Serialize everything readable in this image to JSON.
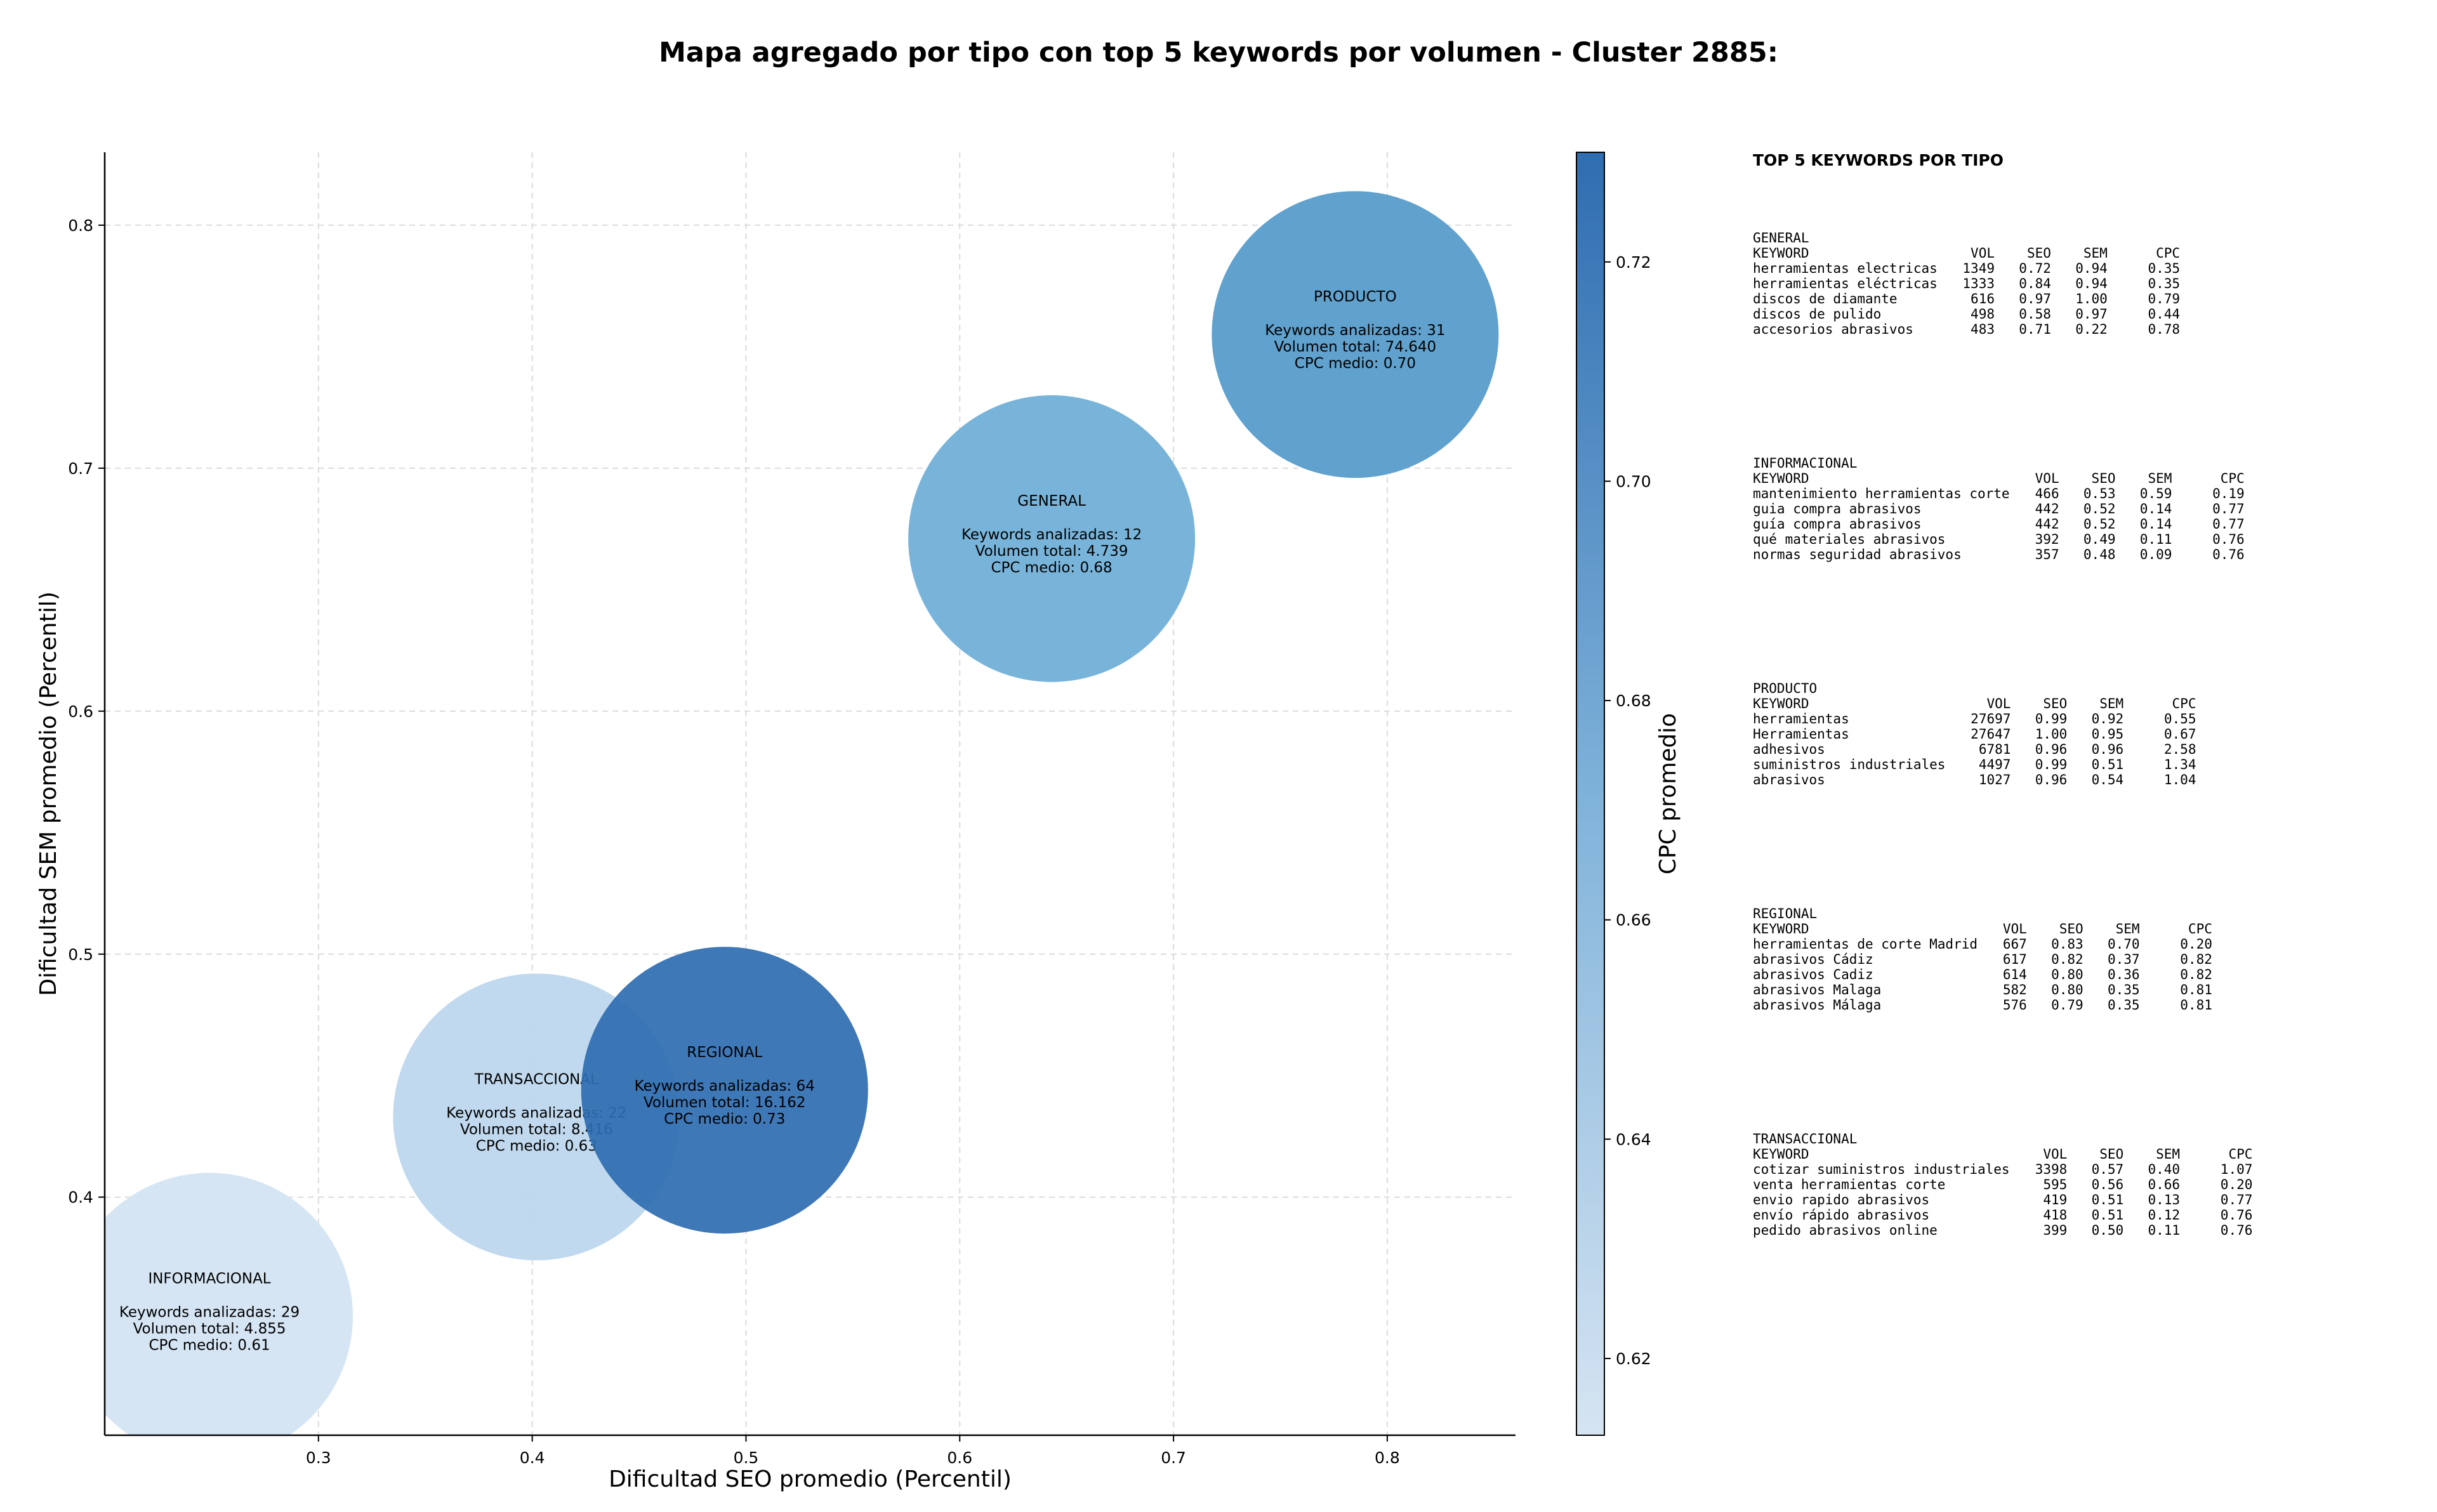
{
  "title": "Mapa agregado por tipo con top 5 keywords por volumen - Cluster 2885:",
  "chart_data": {
    "type": "scatter",
    "subtype": "bubble",
    "title": "Mapa agregado por tipo con top 5 keywords por volumen - Cluster 2885:",
    "xlabel": "Dificultad SEO promedio (Percentil)",
    "ylabel": "Dificultad SEM promedio (Percentil)",
    "xlim": [
      0.2,
      0.86
    ],
    "ylim": [
      0.302,
      0.83
    ],
    "xticks": [
      0.3,
      0.4,
      0.5,
      0.6,
      0.7,
      0.8
    ],
    "xtick_labels": [
      "0.3",
      "0.4",
      "0.5",
      "0.6",
      "0.7",
      "0.8"
    ],
    "yticks": [
      0.4,
      0.5,
      0.6,
      0.7,
      0.8
    ],
    "ytick_labels": [
      "0.4",
      "0.5",
      "0.6",
      "0.7",
      "0.8"
    ],
    "grid": true,
    "colorbar": {
      "label": "CPC promedio",
      "range": [
        0.613,
        0.73
      ],
      "ticks": [
        0.62,
        0.64,
        0.66,
        0.68,
        0.7,
        0.72
      ],
      "tick_labels": [
        "0.62",
        "0.64",
        "0.66",
        "0.68",
        "0.70",
        "0.72"
      ],
      "colormap": "Blues",
      "color_low": "#d6e4f2",
      "color_high": "#2f6db1"
    },
    "points": [
      {
        "name": "INFORMACIONAL",
        "x": 0.249,
        "y": 0.351,
        "color": "#d3e3f3",
        "lines": [
          "Keywords analizadas: 29",
          "Volumen total: 4.855",
          "CPC medio: 0.61"
        ]
      },
      {
        "name": "TRANSACCIONAL",
        "x": 0.402,
        "y": 0.433,
        "color": "#bcd6ed",
        "lines": [
          "Keywords analizadas: 22",
          "Volumen total: 8.416",
          "CPC medio: 0.63"
        ]
      },
      {
        "name": "REGIONAL",
        "x": 0.49,
        "y": 0.444,
        "color": "#2f6db1",
        "lines": [
          "Keywords analizadas: 64",
          "Volumen total: 16.162",
          "CPC medio: 0.73"
        ]
      },
      {
        "name": "GENERAL",
        "x": 0.643,
        "y": 0.671,
        "color": "#6daed6",
        "lines": [
          "Keywords analizadas: 12",
          "Volumen total: 4.739",
          "CPC medio: 0.68"
        ]
      },
      {
        "name": "PRODUCTO",
        "x": 0.785,
        "y": 0.755,
        "color": "#5399c9",
        "lines": [
          "Keywords analizadas: 31",
          "Volumen total: 74.640",
          "CPC medio: 0.70"
        ]
      }
    ]
  },
  "keywords_panel": {
    "title": "TOP 5 KEYWORDS POR TIPO",
    "headers": {
      "keyword": "KEYWORD",
      "vol": "VOL",
      "seo": "SEO",
      "sem": "SEM",
      "cpc": "CPC"
    },
    "groups": [
      {
        "name": "GENERAL",
        "rows": [
          {
            "keyword": "herramientas electricas",
            "vol": "1349",
            "seo": "0.72",
            "sem": "0.94",
            "cpc": "0.35"
          },
          {
            "keyword": "herramientas eléctricas",
            "vol": "1333",
            "seo": "0.84",
            "sem": "0.94",
            "cpc": "0.35"
          },
          {
            "keyword": "discos de diamante",
            "vol": "616",
            "seo": "0.97",
            "sem": "1.00",
            "cpc": "0.79"
          },
          {
            "keyword": "discos de pulido",
            "vol": "498",
            "seo": "0.58",
            "sem": "0.97",
            "cpc": "0.44"
          },
          {
            "keyword": "accesorios abrasivos",
            "vol": "483",
            "seo": "0.71",
            "sem": "0.22",
            "cpc": "0.78"
          }
        ]
      },
      {
        "name": "INFORMACIONAL",
        "rows": [
          {
            "keyword": "mantenimiento herramientas corte",
            "vol": "466",
            "seo": "0.53",
            "sem": "0.59",
            "cpc": "0.19"
          },
          {
            "keyword": "guia compra abrasivos",
            "vol": "442",
            "seo": "0.52",
            "sem": "0.14",
            "cpc": "0.77"
          },
          {
            "keyword": "guía compra abrasivos",
            "vol": "442",
            "seo": "0.52",
            "sem": "0.14",
            "cpc": "0.77"
          },
          {
            "keyword": "qué materiales abrasivos",
            "vol": "392",
            "seo": "0.49",
            "sem": "0.11",
            "cpc": "0.76"
          },
          {
            "keyword": "normas seguridad abrasivos",
            "vol": "357",
            "seo": "0.48",
            "sem": "0.09",
            "cpc": "0.76"
          }
        ]
      },
      {
        "name": "PRODUCTO",
        "rows": [
          {
            "keyword": "herramientas",
            "vol": "27697",
            "seo": "0.99",
            "sem": "0.92",
            "cpc": "0.55"
          },
          {
            "keyword": "Herramientas",
            "vol": "27647",
            "seo": "1.00",
            "sem": "0.95",
            "cpc": "0.67"
          },
          {
            "keyword": "adhesivos",
            "vol": "6781",
            "seo": "0.96",
            "sem": "0.96",
            "cpc": "2.58"
          },
          {
            "keyword": "suministros industriales",
            "vol": "4497",
            "seo": "0.99",
            "sem": "0.51",
            "cpc": "1.34"
          },
          {
            "keyword": "abrasivos",
            "vol": "1027",
            "seo": "0.96",
            "sem": "0.54",
            "cpc": "1.04"
          }
        ]
      },
      {
        "name": "REGIONAL",
        "rows": [
          {
            "keyword": "herramientas de corte Madrid",
            "vol": "667",
            "seo": "0.83",
            "sem": "0.70",
            "cpc": "0.20"
          },
          {
            "keyword": "abrasivos Cádiz",
            "vol": "617",
            "seo": "0.82",
            "sem": "0.37",
            "cpc": "0.82"
          },
          {
            "keyword": "abrasivos Cadiz",
            "vol": "614",
            "seo": "0.80",
            "sem": "0.36",
            "cpc": "0.82"
          },
          {
            "keyword": "abrasivos Malaga",
            "vol": "582",
            "seo": "0.80",
            "sem": "0.35",
            "cpc": "0.81"
          },
          {
            "keyword": "abrasivos Málaga",
            "vol": "576",
            "seo": "0.79",
            "sem": "0.35",
            "cpc": "0.81"
          }
        ]
      },
      {
        "name": "TRANSACCIONAL",
        "rows": [
          {
            "keyword": "cotizar suministros industriales",
            "vol": "3398",
            "seo": "0.57",
            "sem": "0.40",
            "cpc": "1.07"
          },
          {
            "keyword": "venta herramientas corte",
            "vol": "595",
            "seo": "0.56",
            "sem": "0.66",
            "cpc": "0.20"
          },
          {
            "keyword": "envio rapido abrasivos",
            "vol": "419",
            "seo": "0.51",
            "sem": "0.13",
            "cpc": "0.77"
          },
          {
            "keyword": "envío rápido abrasivos",
            "vol": "418",
            "seo": "0.51",
            "sem": "0.12",
            "cpc": "0.76"
          },
          {
            "keyword": "pedido abrasivos online",
            "vol": "399",
            "seo": "0.50",
            "sem": "0.11",
            "cpc": "0.76"
          }
        ]
      }
    ]
  }
}
